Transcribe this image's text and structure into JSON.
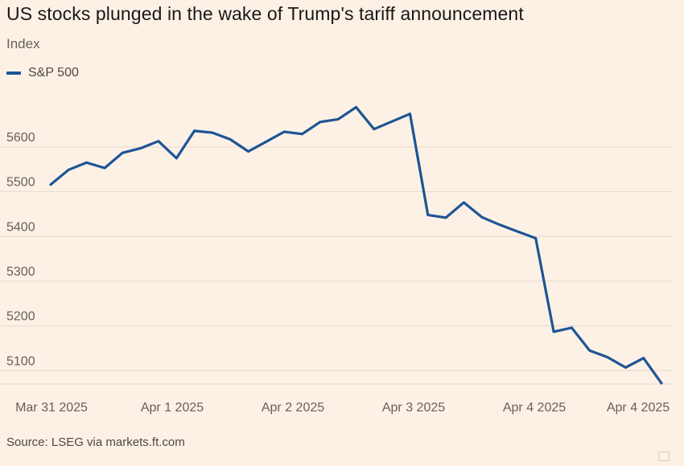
{
  "title": "US stocks plunged in the wake of Trump's tariff announcement",
  "subtitle": "Index",
  "source": "Source: LSEG via markets.ft.com",
  "colors": {
    "line": "#1d5594",
    "background": "#fdf1e6",
    "grid": "#e6d9ce"
  },
  "chart_data": {
    "type": "line",
    "title": "US stocks plunged in the wake of Trump's tariff announcement",
    "ylabel": "Index",
    "xlabel": "",
    "ylim": [
      5070,
      5740
    ],
    "yticks": [
      5100,
      5200,
      5300,
      5400,
      5500,
      5600
    ],
    "xticks": [
      {
        "label": "Mar 31 2025",
        "index": 0
      },
      {
        "label": "Apr 1 2025",
        "index": 7
      },
      {
        "label": "Apr 2 2025",
        "index": 14
      },
      {
        "label": "Apr 3 2025",
        "index": 21
      },
      {
        "label": "Apr 4 2025",
        "index": 28
      },
      {
        "label": "Apr 4 2025",
        "index": 34
      }
    ],
    "grid": true,
    "legend": "top-left",
    "series": [
      {
        "name": "S&P 500",
        "values": [
          5516,
          5549,
          5565,
          5553,
          5587,
          5597,
          5613,
          5575,
          5636,
          5632,
          5617,
          5590,
          5612,
          5634,
          5629,
          5656,
          5662,
          5689,
          5640,
          5657,
          5674,
          5448,
          5442,
          5476,
          5443,
          5426,
          5411,
          5396,
          5187,
          5196,
          5145,
          5130,
          5107,
          5128,
          5072
        ]
      }
    ]
  }
}
